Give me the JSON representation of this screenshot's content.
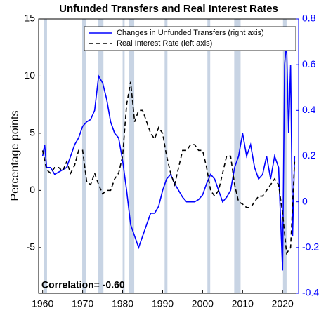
{
  "chart_data": {
    "type": "line",
    "title": "Unfunded Transfers and Real Interest Rates",
    "y_label": "Percentage points",
    "annotation": "Correlation= -0.60",
    "xlim": [
      1959,
      2024
    ],
    "xticks": [
      1960,
      1970,
      1980,
      1990,
      2000,
      2010,
      2020
    ],
    "ylim": [
      -9,
      15
    ],
    "yticks": [
      -5,
      0,
      5,
      10,
      15
    ],
    "y2lim": [
      -0.4,
      0.8
    ],
    "y2ticks": [
      -0.4,
      -0.2,
      0,
      0.2,
      0.4,
      0.6,
      0.8
    ],
    "y2color": "#0000ff",
    "legend": "upper right",
    "recession_color": "#c8d4e4",
    "recessions": [
      [
        1960.3,
        1961.1
      ],
      [
        1969.9,
        1970.9
      ],
      [
        1973.9,
        1975.2
      ],
      [
        1980.0,
        1980.5
      ],
      [
        1981.5,
        1982.9
      ],
      [
        1990.5,
        1991.2
      ],
      [
        2001.2,
        2001.9
      ],
      [
        2007.9,
        2009.5
      ],
      [
        2020.1,
        2021.0
      ]
    ],
    "series": [
      {
        "name": "Changes in Unfunded Transfers (right axis)",
        "color": "#0000ff",
        "dash": false,
        "axis": "y2",
        "x": [
          1960,
          1960.5,
          1961,
          1962,
          1963,
          1964,
          1965,
          1966,
          1967,
          1968,
          1969,
          1970,
          1971,
          1972,
          1973,
          1974,
          1975,
          1976,
          1977,
          1978,
          1979,
          1980,
          1981,
          1982,
          1983,
          1984,
          1985,
          1986,
          1987,
          1988,
          1989,
          1990,
          1991,
          1992,
          1993,
          1994,
          1995,
          1996,
          1997,
          1998,
          1999,
          2000,
          2001,
          2002,
          2003,
          2004,
          2005,
          2006,
          2007,
          2008,
          2009,
          2010,
          2011,
          2012,
          2013,
          2014,
          2015,
          2016,
          2017,
          2018,
          2019,
          2020,
          2020.5,
          2021,
          2021.5,
          2022,
          2022.5,
          2023
        ],
        "values": [
          0.2,
          0.25,
          0.15,
          0.15,
          0.12,
          0.13,
          0.14,
          0.15,
          0.2,
          0.25,
          0.28,
          0.33,
          0.35,
          0.36,
          0.4,
          0.55,
          0.52,
          0.45,
          0.35,
          0.3,
          0.28,
          0.18,
          0.05,
          -0.1,
          -0.15,
          -0.2,
          -0.15,
          -0.1,
          -0.05,
          -0.05,
          -0.02,
          0.05,
          0.1,
          0.12,
          0.08,
          0.05,
          0.02,
          0,
          0,
          0,
          0.01,
          0.03,
          0.08,
          0.12,
          0.1,
          0.05,
          0,
          0.02,
          0.05,
          0.15,
          0.2,
          0.3,
          0.2,
          0.25,
          0.15,
          0.1,
          0.12,
          0.2,
          0.1,
          0.2,
          0.15,
          -0.3,
          0.6,
          0.7,
          0.3,
          0.6,
          -0.15,
          0.2
        ]
      },
      {
        "name": "Real Interest Rate (left axis)",
        "color": "#000000",
        "dash": true,
        "axis": "y",
        "x": [
          1960,
          1961,
          1962,
          1963,
          1964,
          1965,
          1966,
          1967,
          1968,
          1969,
          1970,
          1971,
          1972,
          1973,
          1974,
          1975,
          1976,
          1977,
          1978,
          1979,
          1980,
          1981,
          1982,
          1983,
          1984,
          1985,
          1986,
          1987,
          1988,
          1989,
          1990,
          1991,
          1992,
          1993,
          1994,
          1995,
          1996,
          1997,
          1998,
          1999,
          2000,
          2001,
          2002,
          2003,
          2004,
          2005,
          2006,
          2007,
          2008,
          2009,
          2010,
          2011,
          2012,
          2013,
          2014,
          2015,
          2016,
          2017,
          2018,
          2019,
          2020,
          2021,
          2022,
          2023
        ],
        "values": [
          3.5,
          1.8,
          1.5,
          2,
          2,
          1.7,
          2.5,
          1.5,
          2.2,
          3.5,
          3.5,
          0.8,
          0.5,
          1.5,
          0.5,
          -0.3,
          0,
          0,
          1,
          1.5,
          3,
          7.5,
          9.5,
          6,
          7,
          7,
          6,
          5,
          4.5,
          5.5,
          5,
          3,
          1.5,
          0.5,
          2,
          3.5,
          3.5,
          4,
          4,
          3.5,
          3.5,
          2,
          0,
          -0.5,
          0,
          1.5,
          3,
          3,
          0.5,
          -1,
          -1.2,
          -1.5,
          -1.5,
          -1,
          -0.5,
          -0.5,
          0,
          0.5,
          1,
          0.5,
          -2,
          -5.5,
          -5,
          2.5
        ]
      }
    ]
  }
}
